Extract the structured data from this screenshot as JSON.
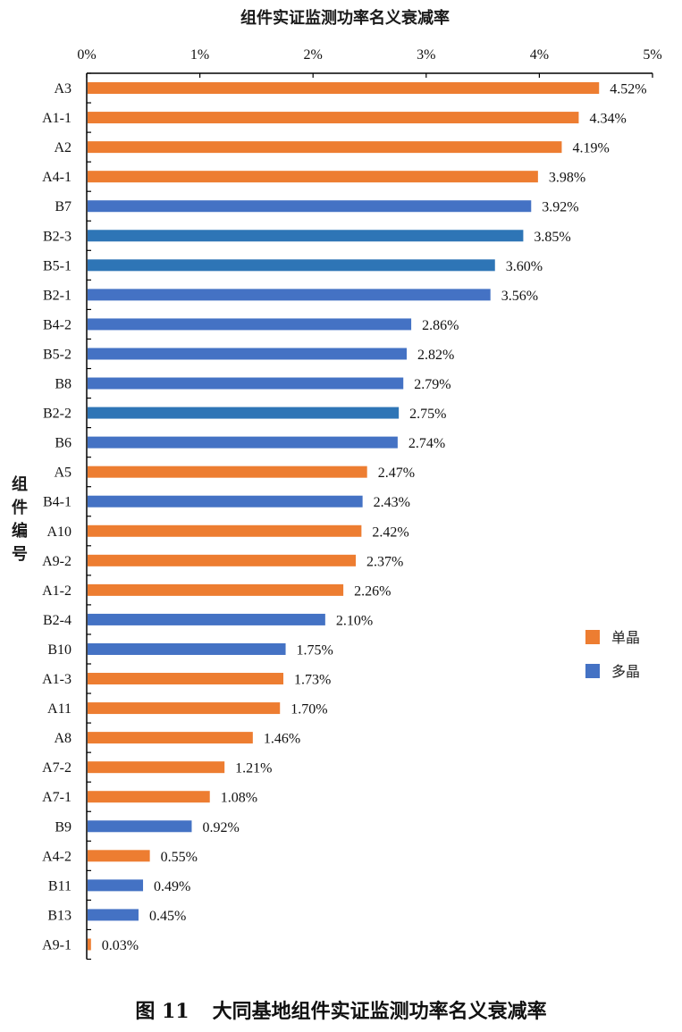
{
  "chart_data": {
    "type": "bar",
    "orientation": "horizontal",
    "title": "组件实证监测功率名义衰减率",
    "xlabel": "",
    "ylabel": "组件编号",
    "xlim": [
      0,
      5
    ],
    "x_ticks": [
      "0%",
      "1%",
      "2%",
      "3%",
      "4%",
      "5%"
    ],
    "x_axis_position": "top",
    "grid": false,
    "legend_position": "right",
    "legend": [
      {
        "name": "单晶",
        "color": "#ED7D31"
      },
      {
        "name": "多晶",
        "color": "#4472C4"
      }
    ],
    "bars": [
      {
        "category": "A3",
        "value": 4.52,
        "label": "4.52%",
        "series": "单晶",
        "color": "#ED7D31"
      },
      {
        "category": "A1-1",
        "value": 4.34,
        "label": "4.34%",
        "series": "单晶",
        "color": "#ED7D31"
      },
      {
        "category": "A2",
        "value": 4.19,
        "label": "4.19%",
        "series": "单晶",
        "color": "#ED7D31"
      },
      {
        "category": "A4-1",
        "value": 3.98,
        "label": "3.98%",
        "series": "单晶",
        "color": "#ED7D31"
      },
      {
        "category": "B7",
        "value": 3.92,
        "label": "3.92%",
        "series": "多晶",
        "color": "#4472C4"
      },
      {
        "category": "B2-3",
        "value": 3.85,
        "label": "3.85%",
        "series": "多晶",
        "color": "#2E75B6"
      },
      {
        "category": "B5-1",
        "value": 3.6,
        "label": "3.60%",
        "series": "多晶",
        "color": "#2E75B6"
      },
      {
        "category": "B2-1",
        "value": 3.56,
        "label": "3.56%",
        "series": "多晶",
        "color": "#4472C4"
      },
      {
        "category": "B4-2",
        "value": 2.86,
        "label": "2.86%",
        "series": "多晶",
        "color": "#4472C4"
      },
      {
        "category": "B5-2",
        "value": 2.82,
        "label": "2.82%",
        "series": "多晶",
        "color": "#4472C4"
      },
      {
        "category": "B8",
        "value": 2.79,
        "label": "2.79%",
        "series": "多晶",
        "color": "#4472C4"
      },
      {
        "category": "B2-2",
        "value": 2.75,
        "label": "2.75%",
        "series": "多晶",
        "color": "#2E75B6"
      },
      {
        "category": "B6",
        "value": 2.74,
        "label": "2.74%",
        "series": "多晶",
        "color": "#4472C4"
      },
      {
        "category": "A5",
        "value": 2.47,
        "label": "2.47%",
        "series": "单晶",
        "color": "#ED7D31"
      },
      {
        "category": "B4-1",
        "value": 2.43,
        "label": "2.43%",
        "series": "多晶",
        "color": "#4472C4"
      },
      {
        "category": "A10",
        "value": 2.42,
        "label": "2.42%",
        "series": "单晶",
        "color": "#ED7D31"
      },
      {
        "category": "A9-2",
        "value": 2.37,
        "label": "2.37%",
        "series": "单晶",
        "color": "#ED7D31"
      },
      {
        "category": "A1-2",
        "value": 2.26,
        "label": "2.26%",
        "series": "单晶",
        "color": "#ED7D31"
      },
      {
        "category": "B2-4",
        "value": 2.1,
        "label": "2.10%",
        "series": "多晶",
        "color": "#4472C4"
      },
      {
        "category": "B10",
        "value": 1.75,
        "label": "1.75%",
        "series": "多晶",
        "color": "#4472C4"
      },
      {
        "category": "A1-3",
        "value": 1.73,
        "label": "1.73%",
        "series": "单晶",
        "color": "#ED7D31"
      },
      {
        "category": "A11",
        "value": 1.7,
        "label": "1.70%",
        "series": "单晶",
        "color": "#ED7D31"
      },
      {
        "category": "A8",
        "value": 1.46,
        "label": "1.46%",
        "series": "单晶",
        "color": "#ED7D31"
      },
      {
        "category": "A7-2",
        "value": 1.21,
        "label": "1.21%",
        "series": "单晶",
        "color": "#ED7D31"
      },
      {
        "category": "A7-1",
        "value": 1.08,
        "label": "1.08%",
        "series": "单晶",
        "color": "#ED7D31"
      },
      {
        "category": "B9",
        "value": 0.92,
        "label": "0.92%",
        "series": "多晶",
        "color": "#4472C4"
      },
      {
        "category": "A4-2",
        "value": 0.55,
        "label": "0.55%",
        "series": "单晶",
        "color": "#ED7D31"
      },
      {
        "category": "B11",
        "value": 0.49,
        "label": "0.49%",
        "series": "多晶",
        "color": "#4472C4"
      },
      {
        "category": "B13",
        "value": 0.45,
        "label": "0.45%",
        "series": "多晶",
        "color": "#4472C4"
      },
      {
        "category": "A9-1",
        "value": 0.03,
        "label": "0.03%",
        "series": "单晶",
        "color": "#ED7D31"
      }
    ]
  },
  "caption": {
    "figure_number": "图 11",
    "text": "大同基地组件实证监测功率名义衰减率"
  }
}
